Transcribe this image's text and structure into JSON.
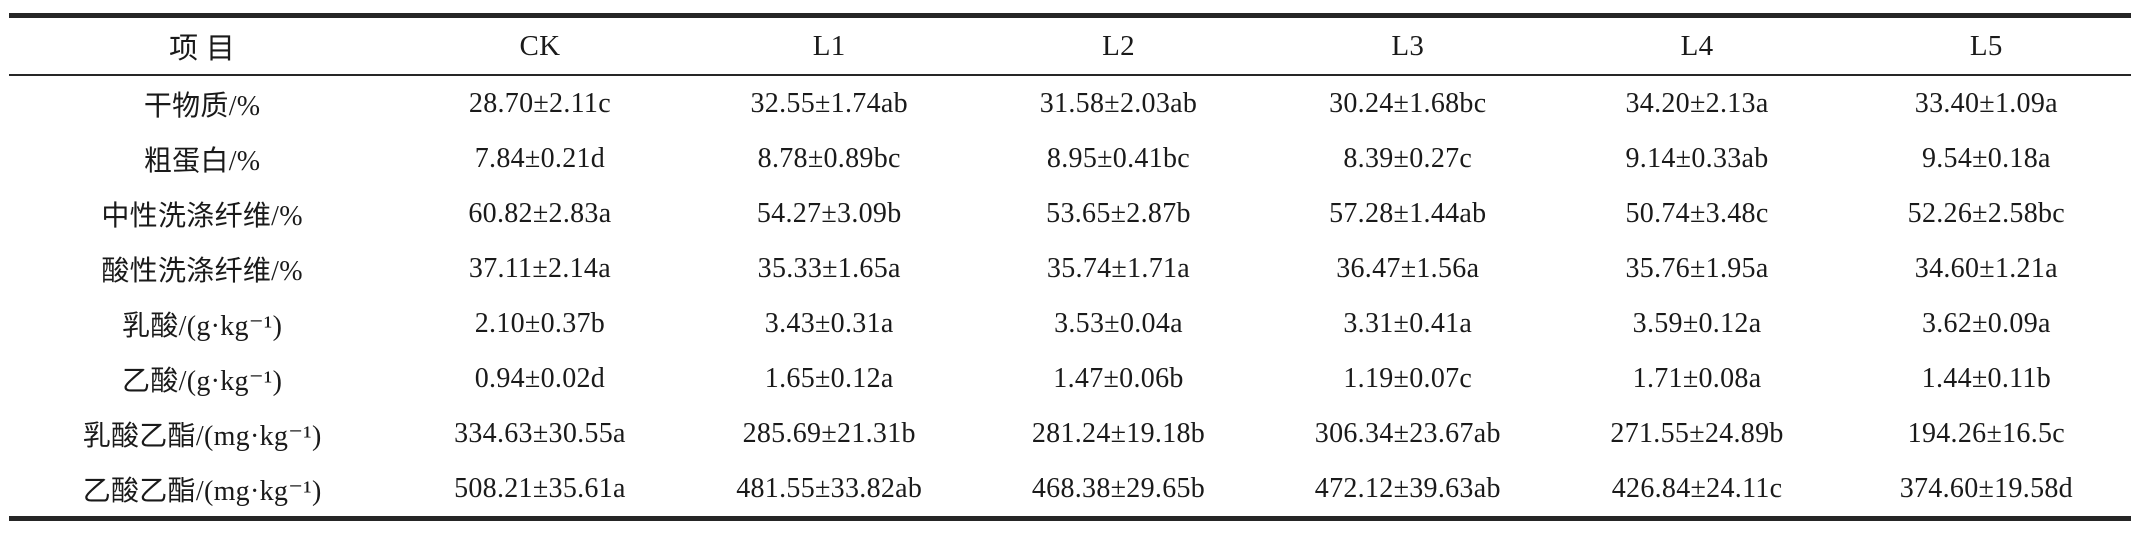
{
  "table": {
    "columns": [
      "项 目",
      "CK",
      "L1",
      "L2",
      "L3",
      "L4",
      "L5"
    ],
    "rows": [
      {
        "label": "干物质/%",
        "values": [
          "28.70±2.11c",
          "32.55±1.74ab",
          "31.58±2.03ab",
          "30.24±1.68bc",
          "34.20±2.13a",
          "33.40±1.09a"
        ]
      },
      {
        "label": "粗蛋白/%",
        "values": [
          "7.84±0.21d",
          "8.78±0.89bc",
          "8.95±0.41bc",
          "8.39±0.27c",
          "9.14±0.33ab",
          "9.54±0.18a"
        ]
      },
      {
        "label": "中性洗涤纤维/%",
        "values": [
          "60.82±2.83a",
          "54.27±3.09b",
          "53.65±2.87b",
          "57.28±1.44ab",
          "50.74±3.48c",
          "52.26±2.58bc"
        ]
      },
      {
        "label": "酸性洗涤纤维/%",
        "values": [
          "37.11±2.14a",
          "35.33±1.65a",
          "35.74±1.71a",
          "36.47±1.56a",
          "35.76±1.95a",
          "34.60±1.21a"
        ]
      },
      {
        "label": "乳酸/(g·kg⁻¹)",
        "values": [
          "2.10±0.37b",
          "3.43±0.31a",
          "3.53±0.04a",
          "3.31±0.41a",
          "3.59±0.12a",
          "3.62±0.09a"
        ]
      },
      {
        "label": "乙酸/(g·kg⁻¹)",
        "values": [
          "0.94±0.02d",
          "1.65±0.12a",
          "1.47±0.06b",
          "1.19±0.07c",
          "1.71±0.08a",
          "1.44±0.11b"
        ]
      },
      {
        "label": "乳酸乙酯/(mg·kg⁻¹)",
        "values": [
          "334.63±30.55a",
          "285.69±21.31b",
          "281.24±19.18b",
          "306.34±23.67ab",
          "271.55±24.89b",
          "194.26±16.5c"
        ]
      },
      {
        "label": "乙酸乙酯/(mg·kg⁻¹)",
        "values": [
          "508.21±35.61a",
          "481.55±33.82ab",
          "468.38±29.65b",
          "472.12±39.63ab",
          "426.84±24.11c",
          "374.60±19.58d"
        ]
      }
    ]
  },
  "colors": {
    "background": "#ffffff",
    "text": "#1a1a1a",
    "rule": "#262626"
  }
}
